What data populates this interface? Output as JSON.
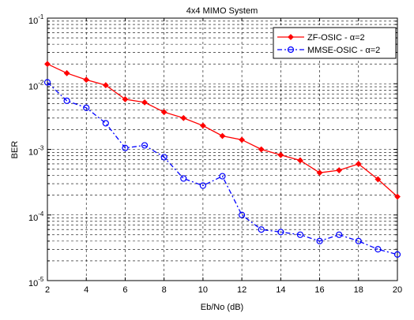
{
  "chart_data": {
    "type": "line",
    "title": "4x4 MIMO System",
    "xlabel": "Eb/No (dB)",
    "ylabel": "BER",
    "xlim": [
      2,
      20
    ],
    "ylim": [
      1e-05,
      0.1
    ],
    "yscale": "log",
    "grid": true,
    "x_ticks": [
      "2",
      "4",
      "6",
      "8",
      "10",
      "12",
      "14",
      "16",
      "18",
      "20"
    ],
    "y_ticks": [
      {
        "base": "10",
        "exp": "-5"
      },
      {
        "base": "10",
        "exp": "-4"
      },
      {
        "base": "10",
        "exp": "-3"
      },
      {
        "base": "10",
        "exp": "-2"
      },
      {
        "base": "10",
        "exp": "-1"
      }
    ],
    "legend": {
      "position": "top-right"
    },
    "x": [
      2,
      3,
      4,
      5,
      6,
      7,
      8,
      9,
      10,
      11,
      12,
      13,
      14,
      15,
      16,
      17,
      18,
      19,
      20
    ],
    "series": [
      {
        "name": "ZF-OSIC - α=2",
        "color": "#ff0000",
        "marker": "diamond",
        "line_style": "solid",
        "values": [
          0.02,
          0.0145,
          0.0115,
          0.0095,
          0.0058,
          0.0052,
          0.0037,
          0.003,
          0.0023,
          0.0016,
          0.0014,
          0.001,
          0.00082,
          0.00068,
          0.00044,
          0.00048,
          0.0006,
          0.00035,
          0.00019
        ]
      },
      {
        "name": "MMSE-OSIC - α=2",
        "color": "#0000ff",
        "marker": "circle",
        "line_style": "dashdot",
        "values": [
          0.0105,
          0.0055,
          0.0043,
          0.0025,
          0.00105,
          0.00115,
          0.00076,
          0.00036,
          0.00028,
          0.00039,
          0.0001,
          6e-05,
          5.5e-05,
          5e-05,
          4e-05,
          5e-05,
          4e-05,
          3e-05,
          2.5e-05
        ]
      }
    ]
  }
}
